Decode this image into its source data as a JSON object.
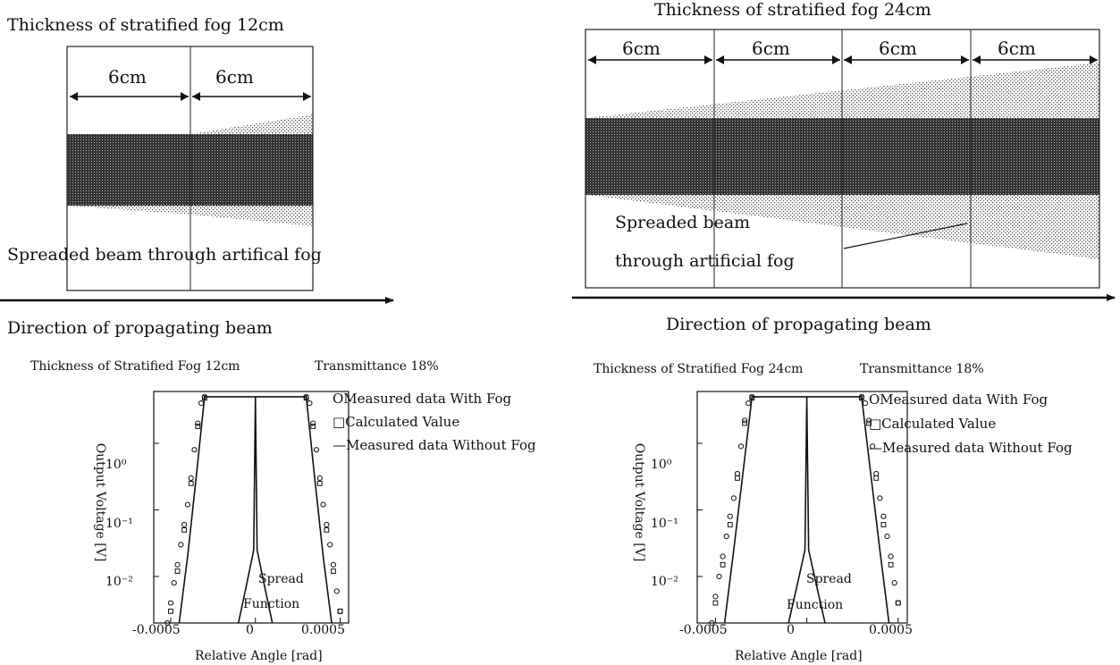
{
  "panels": [
    {
      "id": "left",
      "diagram": {
        "title": "Thickness of stratified fog 12cm",
        "segments": [
          "6cm",
          "6cm"
        ],
        "annotation_lines": [
          "Spreaded beam through artifical fog"
        ],
        "direction_label": "Direction of propagating beam"
      },
      "plot": {
        "header_left": "Thickness of Stratified Fog 12cm",
        "header_right": "Transmittance 18%",
        "legend": [
          "OMeasured data With Fog",
          "□Calculated Value",
          "—Measured data Without Fog"
        ],
        "annotations": [
          "Spread",
          "Function"
        ]
      }
    },
    {
      "id": "right",
      "diagram": {
        "title": "Thickness of stratified fog 24cm",
        "segments": [
          "6cm",
          "6cm",
          "6cm",
          "6cm"
        ],
        "annotation_lines": [
          "Spreaded beam",
          "through artificial fog"
        ],
        "direction_label": "Direction of propagating beam"
      },
      "plot": {
        "header_left": "Thickness of Stratified Fog 24cm",
        "header_right": "Transmittance 18%",
        "legend": [
          "OMeasured data With Fog",
          "□Calculated Value",
          "—Measured data Without Fog"
        ],
        "annotations": [
          "Spread",
          "Function"
        ]
      }
    }
  ],
  "chart_data": [
    {
      "type": "scatter",
      "xlabel": "Relative Angle [rad]",
      "ylabel": "Output Voltage [V]",
      "xlim": [
        -0.0006,
        0.00055
      ],
      "ylim": [
        0.002,
        6
      ],
      "yscale": "log",
      "xticks": [
        "-0.0005",
        "0",
        "0.0005"
      ],
      "yticks": [
        "10⁰",
        "10⁻¹",
        "10⁻²"
      ],
      "series": [
        {
          "name": "Measured data With Fog",
          "marker": "circle",
          "x": [
            -0.00052,
            -0.0005,
            -0.00048,
            -0.00046,
            -0.00044,
            -0.00042,
            -0.0004,
            -0.00038,
            -0.00036,
            -0.00034,
            -0.00032,
            -0.0003,
            0.0003,
            0.00032,
            0.00034,
            0.00036,
            0.00038,
            0.0004,
            0.00042,
            0.00044,
            0.00046,
            0.00048,
            0.0005
          ],
          "y": [
            0.002,
            0.004,
            0.008,
            0.015,
            0.03,
            0.06,
            0.12,
            0.3,
            0.8,
            2,
            4,
            5,
            5,
            4,
            2,
            0.8,
            0.3,
            0.12,
            0.06,
            0.03,
            0.015,
            0.006,
            0.003
          ]
        },
        {
          "name": "Calculated Value",
          "marker": "square",
          "x": [
            -0.0005,
            -0.00046,
            -0.00042,
            -0.00038,
            -0.00034,
            -0.0003,
            0.0003,
            0.00034,
            0.00038,
            0.00042,
            0.00046,
            0.0005
          ],
          "y": [
            0.003,
            0.012,
            0.05,
            0.25,
            1.8,
            4.8,
            4.8,
            1.8,
            0.25,
            0.05,
            0.012,
            0.003
          ]
        },
        {
          "name": "Measured data Without Fog",
          "marker": "line",
          "x": [
            -0.00045,
            -0.0004,
            -0.00035,
            -0.0003,
            0.0003,
            0.00035,
            0.0004,
            0.00045
          ],
          "y": [
            0.002,
            0.02,
            0.3,
            5,
            5,
            0.3,
            0.02,
            0.002
          ]
        },
        {
          "name": "Spread Function",
          "marker": "line",
          "x": [
            -0.0001,
            -5e-05,
            -1e-05,
            0,
            1e-05,
            5e-05,
            0.0001
          ],
          "y": [
            0.002,
            0.008,
            0.025,
            5,
            0.025,
            0.008,
            0.002
          ]
        }
      ]
    },
    {
      "type": "scatter",
      "xlabel": "Relative Angle [rad]",
      "ylabel": "Output Voltage [V]",
      "xlim": [
        -0.0006,
        0.00055
      ],
      "ylim": [
        0.002,
        6
      ],
      "yscale": "log",
      "xticks": [
        "-0.0005",
        "0",
        "0.0005"
      ],
      "yticks": [
        "10⁰",
        "10⁻¹",
        "10⁻²"
      ],
      "series": [
        {
          "name": "Measured data With Fog",
          "marker": "circle",
          "x": [
            -0.00052,
            -0.0005,
            -0.00048,
            -0.00046,
            -0.00044,
            -0.00042,
            -0.0004,
            -0.00038,
            -0.00036,
            -0.00034,
            -0.00032,
            -0.0003,
            0.0003,
            0.00032,
            0.00034,
            0.00036,
            0.00038,
            0.0004,
            0.00042,
            0.00044,
            0.00046,
            0.00048,
            0.0005
          ],
          "y": [
            0.002,
            0.005,
            0.01,
            0.02,
            0.04,
            0.08,
            0.15,
            0.35,
            0.9,
            2.2,
            4,
            5,
            5,
            4,
            2.2,
            0.9,
            0.35,
            0.15,
            0.08,
            0.04,
            0.02,
            0.008,
            0.004
          ]
        },
        {
          "name": "Calculated Value",
          "marker": "square",
          "x": [
            -0.0005,
            -0.00046,
            -0.00042,
            -0.00038,
            -0.00034,
            -0.0003,
            0.0003,
            0.00034,
            0.00038,
            0.00042,
            0.00046,
            0.0005
          ],
          "y": [
            0.004,
            0.015,
            0.06,
            0.3,
            2,
            4.8,
            4.8,
            2,
            0.3,
            0.06,
            0.015,
            0.004
          ]
        },
        {
          "name": "Measured data Without Fog",
          "marker": "line",
          "x": [
            -0.00045,
            -0.0004,
            -0.00035,
            -0.0003,
            0.0003,
            0.00035,
            0.0004,
            0.00045
          ],
          "y": [
            0.002,
            0.025,
            0.35,
            5,
            5,
            0.35,
            0.025,
            0.002
          ]
        },
        {
          "name": "Spread Function",
          "marker": "line",
          "x": [
            -0.0001,
            -5e-05,
            -1e-05,
            0,
            1e-05,
            5e-05,
            0.0001
          ],
          "y": [
            0.002,
            0.008,
            0.025,
            5,
            0.025,
            0.008,
            0.002
          ]
        }
      ]
    }
  ]
}
